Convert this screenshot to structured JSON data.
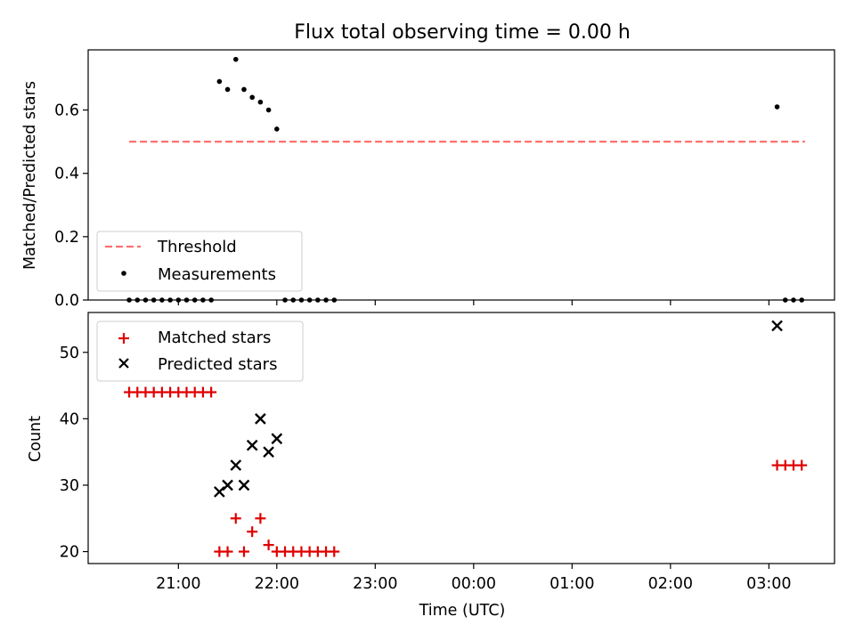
{
  "chart_data": [
    {
      "type": "scatter",
      "title": "Flux total observing time = 0.00 h",
      "ylabel": "Matched/Predicted stars",
      "ylim": [
        0,
        0.79
      ],
      "yticks": [
        0.0,
        0.2,
        0.4,
        0.6
      ],
      "yticklabels": [
        "0.0",
        "0.2",
        "0.4",
        "0.6"
      ],
      "threshold": {
        "value": 0.5,
        "x_start": "20:30",
        "x_end": "03:22",
        "color": "#ff7070"
      },
      "legend": {
        "position": "lower-left",
        "threshold_label": "Threshold",
        "measurements_label": "Measurements"
      },
      "series": [
        {
          "name": "Measurements",
          "marker": "dot",
          "color": "#000000",
          "x": [
            "20:30",
            "20:35",
            "20:40",
            "20:45",
            "20:50",
            "20:55",
            "21:00",
            "21:05",
            "21:10",
            "21:15",
            "21:20",
            "21:25",
            "21:30",
            "21:35",
            "21:40",
            "21:45",
            "21:50",
            "21:55",
            "22:00",
            "22:05",
            "22:10",
            "22:15",
            "22:20",
            "22:25",
            "22:30",
            "22:35",
            "03:05",
            "03:10",
            "03:15",
            "03:20"
          ],
          "y": [
            0,
            0,
            0,
            0,
            0,
            0,
            0,
            0,
            0,
            0,
            0,
            0.69,
            0.665,
            0.76,
            0.665,
            0.64,
            0.625,
            0.6,
            0.54,
            0,
            0,
            0,
            0,
            0,
            0,
            0,
            0.61,
            0,
            0,
            0
          ]
        }
      ]
    },
    {
      "type": "scatter",
      "xlabel": "Time (UTC)",
      "ylabel": "Count",
      "ylim": [
        18.2,
        56
      ],
      "yticks": [
        20,
        30,
        40,
        50
      ],
      "yticklabels": [
        "20",
        "30",
        "40",
        "50"
      ],
      "xticks": [
        "21:00",
        "22:00",
        "23:00",
        "00:00",
        "01:00",
        "02:00",
        "03:00"
      ],
      "xticklabels": [
        "21:00",
        "22:00",
        "23:00",
        "00:00",
        "01:00",
        "02:00",
        "03:00"
      ],
      "x_range": [
        "20:05",
        "03:40"
      ],
      "legend": {
        "position": "upper-left"
      },
      "series": [
        {
          "name": "Matched stars",
          "marker": "plus",
          "color": "#e00000",
          "x": [
            "20:30",
            "20:35",
            "20:40",
            "20:45",
            "20:50",
            "20:55",
            "21:00",
            "21:05",
            "21:10",
            "21:15",
            "21:20",
            "21:25",
            "21:30",
            "21:35",
            "21:40",
            "21:45",
            "21:50",
            "21:55",
            "22:00",
            "22:05",
            "22:10",
            "22:15",
            "22:20",
            "22:25",
            "22:30",
            "22:35",
            "03:05",
            "03:10",
            "03:15",
            "03:20"
          ],
          "y": [
            44,
            44,
            44,
            44,
            44,
            44,
            44,
            44,
            44,
            44,
            44,
            20,
            20,
            25,
            20,
            23,
            25,
            21,
            20,
            20,
            20,
            20,
            20,
            20,
            20,
            20,
            33,
            33,
            33,
            33
          ]
        },
        {
          "name": "Predicted stars",
          "marker": "x",
          "color": "#000000",
          "x": [
            "21:25",
            "21:30",
            "21:35",
            "21:40",
            "21:45",
            "21:50",
            "21:55",
            "22:00",
            "03:05"
          ],
          "y": [
            29,
            30,
            33,
            30,
            36,
            40,
            35,
            37,
            54
          ]
        }
      ]
    }
  ]
}
